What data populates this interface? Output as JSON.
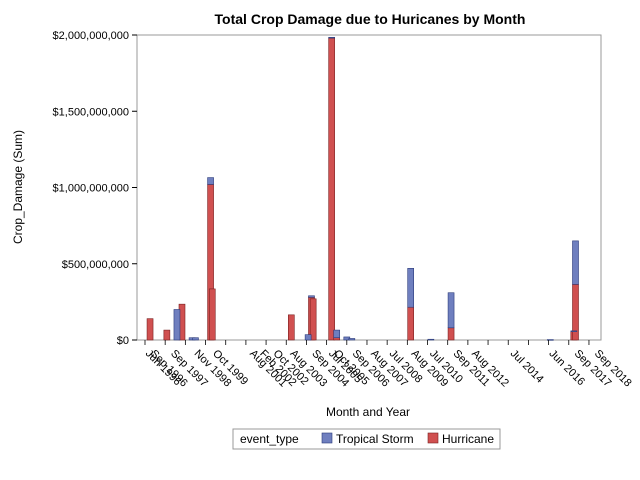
{
  "chart_data": {
    "type": "bar",
    "stacked": true,
    "title": "Total Crop Damage due to Huricanes by Month",
    "xlabel": "Month and Year",
    "ylabel": "Crop_Damage (Sum)",
    "ylim": [
      0,
      2000000000
    ],
    "yticks": [
      {
        "value": 0,
        "label": "$0"
      },
      {
        "value": 500000000,
        "label": "$500,000,000"
      },
      {
        "value": 1000000000,
        "label": "$1,000,000,000"
      },
      {
        "value": 1500000000,
        "label": "$1,500,000,000"
      },
      {
        "value": 2000000000,
        "label": "$2,000,000,000"
      }
    ],
    "xrange": [
      "1996-06",
      "2018-09"
    ],
    "xtick_labels": [
      {
        "date": "1996-06",
        "label": "Jun 1996"
      },
      {
        "date": "1996-09",
        "label": "Sep 1996"
      },
      {
        "date": "1997-09",
        "label": "Sep 1997"
      },
      {
        "date": "1998-11",
        "label": "Nov 1998"
      },
      {
        "date": "1999-10",
        "label": "Oct 1999"
      },
      {
        "date": "2001-08",
        "label": "Aug 2001"
      },
      {
        "date": "2002-02",
        "label": "Feb 2002"
      },
      {
        "date": "2002-10",
        "label": "Oct 2002"
      },
      {
        "date": "2003-08",
        "label": "Aug 2003"
      },
      {
        "date": "2004-09",
        "label": "Sep 2004"
      },
      {
        "date": "2005-07",
        "label": "Jul 2005"
      },
      {
        "date": "2005-10",
        "label": "Oct 2005"
      },
      {
        "date": "2006-09",
        "label": "Sep 2006"
      },
      {
        "date": "2007-08",
        "label": "Aug 2007"
      },
      {
        "date": "2008-07",
        "label": "Jul 2008"
      },
      {
        "date": "2009-08",
        "label": "Aug 2009"
      },
      {
        "date": "2010-07",
        "label": "Jul 2010"
      },
      {
        "date": "2011-09",
        "label": "Sep 2011"
      },
      {
        "date": "2012-08",
        "label": "Aug 2012"
      },
      {
        "date": "2014-07",
        "label": "Jul 2014"
      },
      {
        "date": "2016-06",
        "label": "Jun 2016"
      },
      {
        "date": "2017-09",
        "label": "Sep 2017"
      },
      {
        "date": "2018-09",
        "label": "Sep 2018"
      }
    ],
    "series": [
      {
        "name": "Tropical Storm",
        "color": "#6f7fbf",
        "points": [
          {
            "date": "1996-09",
            "value": 0
          },
          {
            "date": "1998-01",
            "value": 200000000
          },
          {
            "date": "1998-04",
            "value": 0
          },
          {
            "date": "1998-10",
            "value": 15000000
          },
          {
            "date": "1998-12",
            "value": 15000000
          },
          {
            "date": "1999-09",
            "value": 45000000
          },
          {
            "date": "1999-10",
            "value": 0
          },
          {
            "date": "2003-09",
            "value": 0
          },
          {
            "date": "2004-07",
            "value": 35000000
          },
          {
            "date": "2004-09",
            "value": 10000000
          },
          {
            "date": "2004-10",
            "value": 0
          },
          {
            "date": "2005-09",
            "value": 5000000
          },
          {
            "date": "2005-12",
            "value": 50000000
          },
          {
            "date": "2006-06",
            "value": 20000000
          },
          {
            "date": "2006-09",
            "value": 10000000
          },
          {
            "date": "2009-08",
            "value": 255000000
          },
          {
            "date": "2010-08",
            "value": 5000000
          },
          {
            "date": "2011-08",
            "value": 230000000
          },
          {
            "date": "2016-07",
            "value": 3000000
          },
          {
            "date": "2017-09",
            "value": 5000000
          },
          {
            "date": "2017-10",
            "value": 285000000
          }
        ]
      },
      {
        "name": "Hurricane",
        "color": "#d05050",
        "points": [
          {
            "date": "1996-09",
            "value": 140000000
          },
          {
            "date": "1997-07",
            "value": 65000000
          },
          {
            "date": "1998-04",
            "value": 235000000
          },
          {
            "date": "1998-10",
            "value": 0
          },
          {
            "date": "1999-09",
            "value": 1020000000
          },
          {
            "date": "1999-10",
            "value": 335000000
          },
          {
            "date": "2003-09",
            "value": 165000000
          },
          {
            "date": "2004-09",
            "value": 280000000
          },
          {
            "date": "2004-10",
            "value": 270000000
          },
          {
            "date": "2005-09",
            "value": 1980000000
          },
          {
            "date": "2005-12",
            "value": 15000000
          },
          {
            "date": "2009-08",
            "value": 215000000
          },
          {
            "date": "2011-08",
            "value": 80000000
          },
          {
            "date": "2017-09",
            "value": 55000000
          },
          {
            "date": "2017-10",
            "value": 365000000
          }
        ]
      }
    ],
    "legend": {
      "title": "event_type",
      "position": "bottom-center",
      "entries": [
        "Tropical Storm",
        "Hurricane"
      ]
    },
    "grid": false
  }
}
